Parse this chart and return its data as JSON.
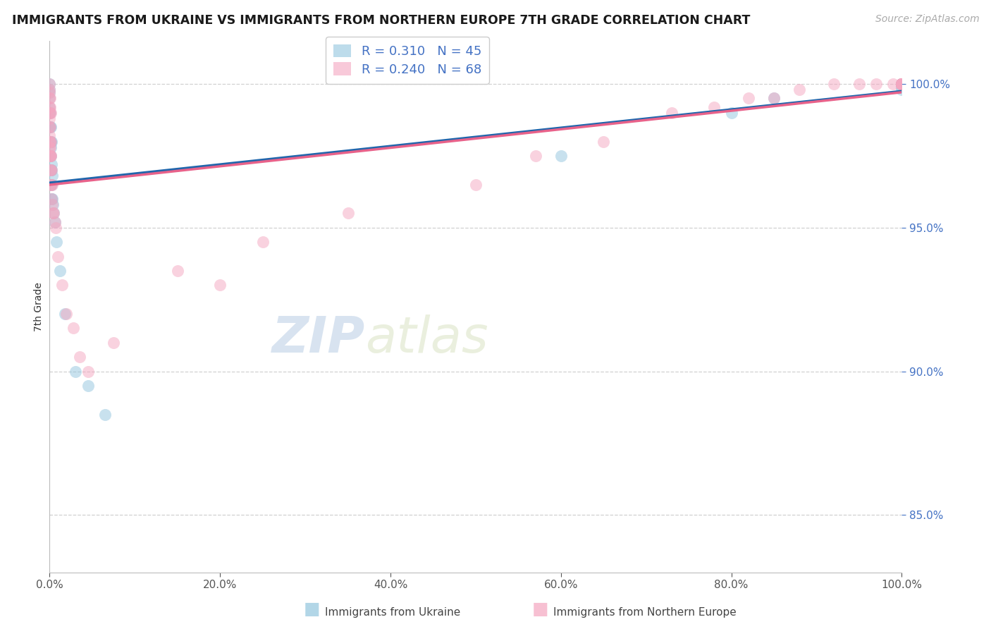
{
  "title": "IMMIGRANTS FROM UKRAINE VS IMMIGRANTS FROM NORTHERN EUROPE 7TH GRADE CORRELATION CHART",
  "source": "Source: ZipAtlas.com",
  "ylabel": "7th Grade",
  "legend_ukraine": "Immigrants from Ukraine",
  "legend_northern": "Immigrants from Northern Europe",
  "R_ukraine": 0.31,
  "N_ukraine": 45,
  "R_northern": 0.24,
  "N_northern": 68,
  "ukraine_color": "#92c5de",
  "northern_color": "#f4a6c0",
  "ukraine_line_color": "#2166ac",
  "northern_line_color": "#e8628a",
  "watermark_color": "#dde8f5",
  "xlim": [
    0,
    100
  ],
  "ylim": [
    83.0,
    101.5
  ],
  "yticks": [
    85.0,
    90.0,
    95.0,
    100.0
  ],
  "xticks": [
    0,
    20,
    40,
    60,
    80,
    100
  ],
  "ukraine_x": [
    0.0,
    0.0,
    0.0,
    0.0,
    0.0,
    0.0,
    0.0,
    0.05,
    0.05,
    0.05,
    0.05,
    0.1,
    0.1,
    0.1,
    0.1,
    0.15,
    0.15,
    0.15,
    0.2,
    0.2,
    0.2,
    0.25,
    0.25,
    0.3,
    0.3,
    0.4,
    0.5,
    0.6,
    0.8,
    1.2,
    1.8,
    3.0,
    4.5,
    6.5,
    60.0,
    80.0,
    85.0,
    100.0,
    100.0,
    100.0,
    100.0,
    100.0,
    100.0,
    100.0,
    100.0
  ],
  "ukraine_y": [
    98.5,
    99.0,
    99.2,
    99.5,
    99.7,
    99.8,
    100.0,
    97.5,
    98.0,
    98.5,
    99.0,
    97.0,
    97.5,
    98.0,
    98.5,
    96.5,
    97.0,
    97.8,
    96.5,
    97.2,
    98.0,
    96.0,
    97.0,
    96.0,
    96.8,
    95.8,
    95.5,
    95.2,
    94.5,
    93.5,
    92.0,
    90.0,
    89.5,
    88.5,
    97.5,
    99.0,
    99.5,
    99.8,
    99.9,
    100.0,
    100.0,
    100.0,
    100.0,
    100.0,
    100.0
  ],
  "northern_x": [
    0.0,
    0.0,
    0.0,
    0.0,
    0.0,
    0.0,
    0.0,
    0.0,
    0.0,
    0.0,
    0.0,
    0.0,
    0.05,
    0.05,
    0.05,
    0.05,
    0.05,
    0.05,
    0.05,
    0.05,
    0.1,
    0.1,
    0.1,
    0.1,
    0.1,
    0.15,
    0.15,
    0.2,
    0.2,
    0.3,
    0.3,
    0.4,
    0.5,
    0.6,
    0.7,
    1.0,
    1.5,
    2.0,
    2.8,
    3.5,
    4.5,
    7.5,
    15.0,
    20.0,
    25.0,
    35.0,
    50.0,
    57.0,
    65.0,
    73.0,
    78.0,
    82.0,
    85.0,
    88.0,
    92.0,
    95.0,
    97.0,
    99.0,
    100.0,
    100.0,
    100.0,
    100.0,
    100.0,
    100.0,
    100.0,
    100.0,
    100.0,
    100.0
  ],
  "northern_y": [
    97.5,
    97.8,
    98.0,
    98.2,
    98.5,
    98.8,
    99.0,
    99.2,
    99.5,
    99.7,
    99.8,
    100.0,
    97.0,
    97.5,
    97.8,
    98.0,
    98.5,
    99.0,
    99.2,
    99.5,
    96.5,
    97.0,
    97.5,
    98.0,
    99.0,
    96.5,
    97.5,
    96.0,
    97.0,
    95.8,
    96.5,
    95.5,
    95.5,
    95.2,
    95.0,
    94.0,
    93.0,
    92.0,
    91.5,
    90.5,
    90.0,
    91.0,
    93.5,
    93.0,
    94.5,
    95.5,
    96.5,
    97.5,
    98.0,
    99.0,
    99.2,
    99.5,
    99.5,
    99.8,
    100.0,
    100.0,
    100.0,
    100.0,
    100.0,
    100.0,
    100.0,
    100.0,
    100.0,
    100.0,
    100.0,
    100.0,
    100.0,
    100.0
  ]
}
